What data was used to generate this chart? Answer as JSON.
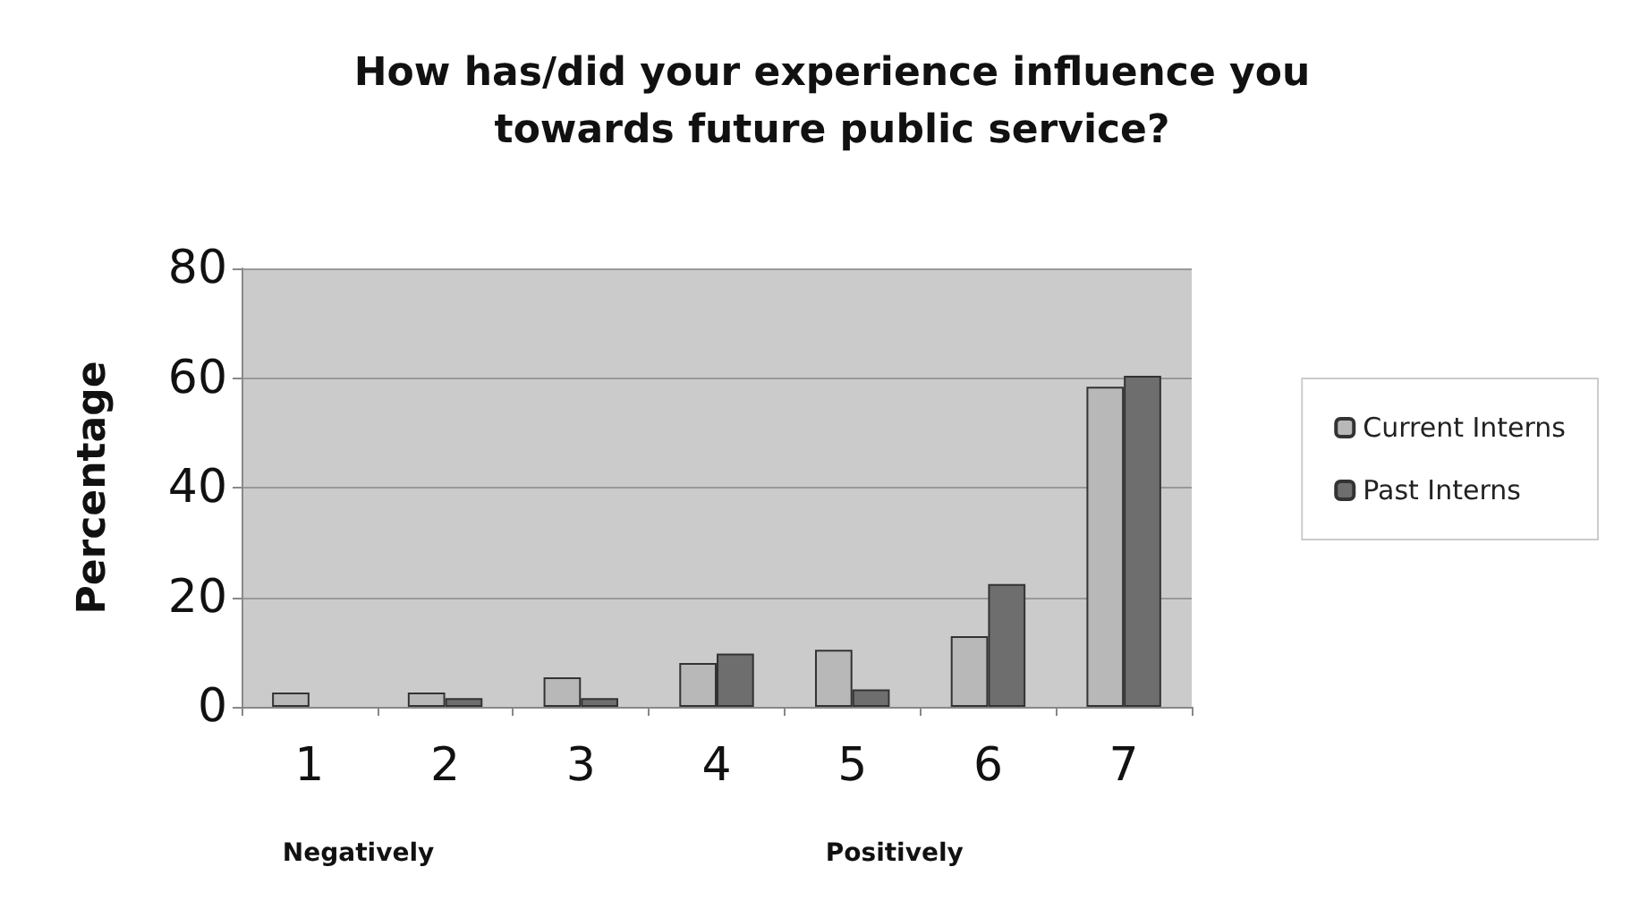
{
  "chart_data": {
    "type": "bar",
    "title": "How has/did your experience influence you\ntowards future public service?",
    "ylabel": "Percentage",
    "categories": [
      "1",
      "2",
      "3",
      "4",
      "5",
      "6",
      "7"
    ],
    "series": [
      {
        "name": "Current Interns",
        "color": "#b8b8b8",
        "values": [
          2.6,
          2.6,
          5.4,
          8,
          10.4,
          12.9,
          58.4
        ]
      },
      {
        "name": "Past Interns",
        "color": "#6e6e6e",
        "values": [
          null,
          1.6,
          1.6,
          9.7,
          3.2,
          22.4,
          60.4
        ]
      }
    ],
    "annotations": [
      "Negatively",
      "Positively"
    ],
    "ylim": [
      0,
      80
    ],
    "yticks": [
      0,
      20,
      40,
      60,
      80
    ],
    "grid": "y",
    "legend": "right"
  }
}
